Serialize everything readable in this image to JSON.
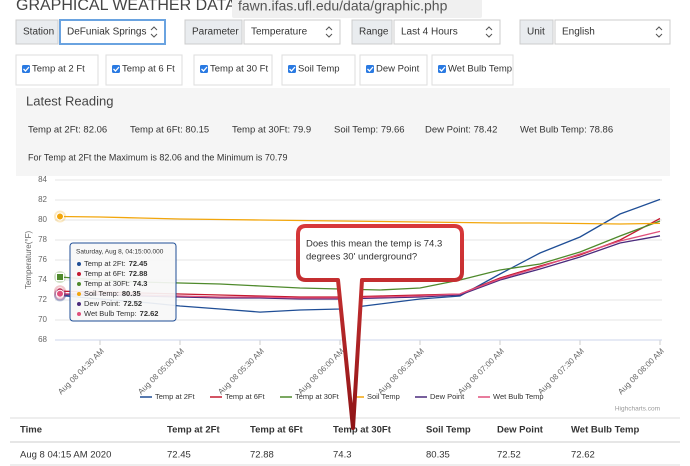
{
  "header": {
    "title": "GRAPHICAL WEATHER DATA",
    "url": "fawn.ifas.ufl.edu/data/graphic.php"
  },
  "controls": [
    {
      "label": "Station",
      "value": "DeFuniak Springs"
    },
    {
      "label": "Parameter",
      "value": "Temperature"
    },
    {
      "label": "Range",
      "value": "Last 4 Hours"
    },
    {
      "label": "Unit",
      "value": "English"
    }
  ],
  "checkboxes": [
    "Temp at 2 Ft",
    "Temp at 6 Ft",
    "Temp at 30 Ft",
    "Soil Temp",
    "Dew Point",
    "Wet Bulb Temp"
  ],
  "latest_reading": {
    "title": "Latest Reading",
    "readings": [
      "Temp at 2Ft: 82.06",
      "Temp at 6Ft: 80.15",
      "Temp at 30Ft: 79.9",
      "Soil Temp: 79.66",
      "Dew Point: 78.42",
      "Wet Bulb Temp: 78.86"
    ],
    "summary": "For Temp at 2Ft the Maximum is 82.06 and the Minimum is 70.79"
  },
  "chart_data": {
    "type": "line",
    "y_label": "Temperature(°F)",
    "categories": [
      null,
      "Aug 08 04:30 AM",
      null,
      "Aug 08 05:00 AM",
      null,
      "Aug 08 05:30 AM",
      null,
      "Aug 08 06:00 AM",
      null,
      "Aug 08 06:30 AM",
      null,
      "Aug 08 07:00 AM",
      null,
      "Aug 08 07:30 AM",
      null,
      "Aug 08 08:00 AM"
    ],
    "ylim": [
      68,
      84
    ],
    "yticks": [
      68,
      70,
      72,
      74,
      76,
      78,
      80,
      82,
      84
    ],
    "grid": true,
    "series": [
      {
        "name": "Temp at 2Ft",
        "color": "#1f4e96",
        "values": [
          72.45,
          72.1,
          71.8,
          71.4,
          71.1,
          70.79,
          71.0,
          71.1,
          71.6,
          72.1,
          72.4,
          74.6,
          76.7,
          78.3,
          80.6,
          82.06
        ]
      },
      {
        "name": "Temp at 6Ft",
        "color": "#c41a30",
        "values": [
          72.88,
          72.8,
          72.7,
          72.6,
          72.5,
          72.4,
          72.3,
          72.3,
          72.4,
          72.5,
          72.6,
          74.2,
          75.4,
          76.5,
          78.0,
          80.15
        ]
      },
      {
        "name": "Temp at 30Ft",
        "color": "#4f8a2c",
        "values": [
          74.3,
          74.0,
          73.8,
          73.7,
          73.6,
          73.4,
          73.2,
          73.1,
          73.0,
          73.2,
          74.0,
          75.0,
          75.6,
          76.8,
          78.4,
          79.9
        ]
      },
      {
        "name": "Soil Temp",
        "color": "#f2a60c",
        "values": [
          80.35,
          80.3,
          80.2,
          80.1,
          80.05,
          80.0,
          79.95,
          79.9,
          79.85,
          79.8,
          79.75,
          79.7,
          79.7,
          79.65,
          79.6,
          79.66
        ]
      },
      {
        "name": "Dew Point",
        "color": "#4a2a7c",
        "values": [
          72.52,
          72.5,
          72.4,
          72.3,
          72.2,
          72.2,
          72.1,
          72.1,
          72.2,
          72.3,
          72.5,
          74.0,
          75.1,
          76.3,
          77.7,
          78.42
        ]
      },
      {
        "name": "Wet Bulb Temp",
        "color": "#e0507c",
        "values": [
          72.62,
          72.6,
          72.5,
          72.4,
          72.3,
          72.3,
          72.2,
          72.2,
          72.3,
          72.4,
          72.6,
          74.1,
          75.3,
          76.6,
          77.9,
          78.86
        ]
      }
    ],
    "tooltip": {
      "title": "Saturday, Aug 8, 04:15:00.000",
      "items": [
        {
          "label": "Temp at 2Ft:",
          "value": "72.45"
        },
        {
          "label": "Temp at 6Ft:",
          "value": "72.88"
        },
        {
          "label": "Temp at 30Ft:",
          "value": "74.3"
        },
        {
          "label": "Soil Temp:",
          "value": "80.35"
        },
        {
          "label": "Dew Point:",
          "value": "72.52"
        },
        {
          "label": "Wet Bulb Temp:",
          "value": "72.62"
        }
      ]
    },
    "annotation": [
      "Does this mean the temp is 74.3",
      "degrees 30' underground?"
    ],
    "credit": "Highcharts.com"
  },
  "table": {
    "headers": [
      "Time",
      "Temp at 2Ft",
      "Temp at 6Ft",
      "Temp at 30Ft",
      "Soil Temp",
      "Dew Point",
      "Wet Bulb Temp"
    ],
    "rows": [
      [
        "Aug 8 04:15 AM 2020",
        "72.45",
        "72.88",
        "74.3",
        "80.35",
        "72.52",
        "72.62"
      ]
    ]
  }
}
